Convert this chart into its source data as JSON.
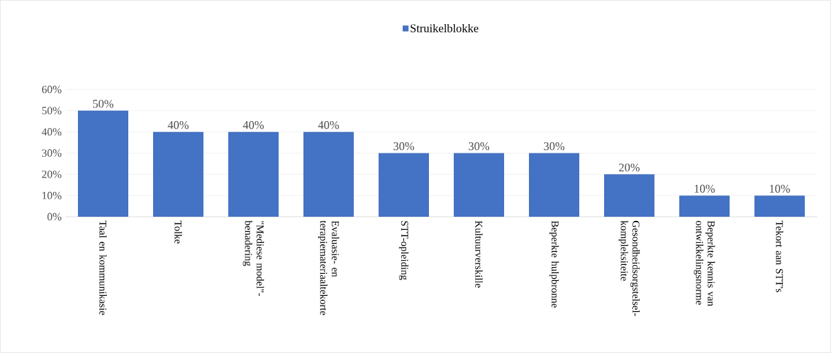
{
  "chart_data": {
    "type": "bar",
    "categories": [
      "Taal en kommunikasie",
      "Tolke",
      "\"Mediese model\"-benadering",
      "Evaluasie- en terapiemateriaaltekorte",
      "STT-opleiding",
      "Kultuurverskille",
      "Beperkte hulpbronne",
      "Gesondheidsorgstelsel-kompleksiteite",
      "Beperkte kennis van ontwikkelingsnorme",
      "Tekort aan STT's"
    ],
    "series": [
      {
        "name": "Struikelblokke",
        "color": "#4472c4",
        "values": [
          50,
          40,
          40,
          40,
          30,
          30,
          30,
          20,
          10,
          10
        ],
        "value_labels": [
          "50%",
          "40%",
          "40%",
          "40%",
          "30%",
          "30%",
          "30%",
          "20%",
          "10%",
          "10%"
        ]
      }
    ],
    "ylim": [
      0,
      60
    ],
    "yticks": [
      {
        "value": 0,
        "label": "0%"
      },
      {
        "value": 10,
        "label": "10%"
      },
      {
        "value": 20,
        "label": "20%"
      },
      {
        "value": 30,
        "label": "30%"
      },
      {
        "value": 40,
        "label": "40%"
      },
      {
        "value": 50,
        "label": "50%"
      },
      {
        "value": 60,
        "label": "60%"
      }
    ],
    "grid": "y",
    "legend": "top"
  }
}
